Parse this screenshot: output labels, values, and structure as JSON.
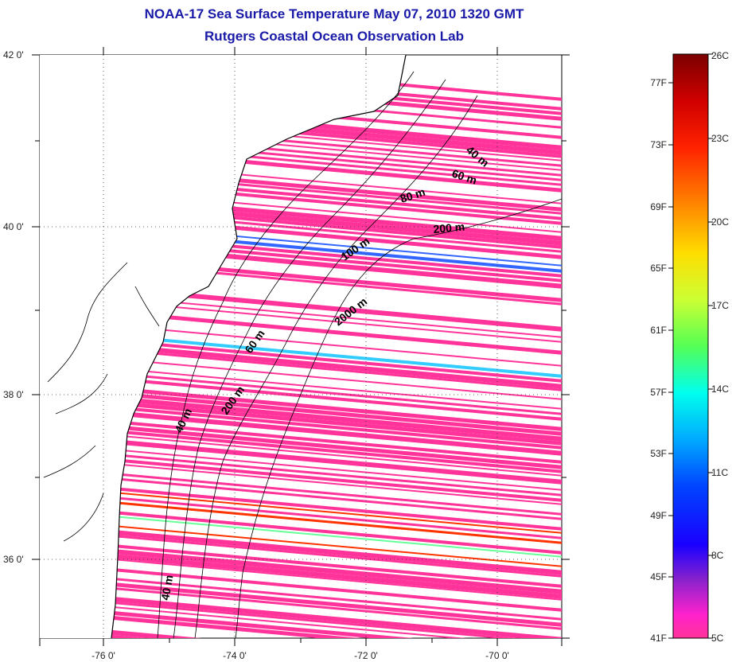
{
  "title": "NOAA-17 Sea Surface Temperature May 07, 2010 1320 GMT",
  "subtitle": "Rutgers Coastal Ocean Observation Lab",
  "map": {
    "lon_ticks": [
      "-76 0'",
      "-74 0'",
      "-72 0'",
      "-70 0'"
    ],
    "lat_ticks": [
      "42 0'",
      "40 0'",
      "38 0'",
      "36 0'"
    ],
    "contour_labels": [
      "40 m",
      "60 m",
      "80 m",
      "200 m",
      "100 m",
      "2000 m",
      "60 m",
      "200 m",
      "40 m",
      "40 m"
    ]
  },
  "colorbar": {
    "fahrenheit_labels": [
      "77F",
      "73F",
      "69F",
      "65F",
      "61F",
      "57F",
      "53F",
      "49F",
      "45F",
      "41F"
    ],
    "celsius_labels": [
      "26C",
      "23C",
      "20C",
      "17C",
      "14C",
      "11C",
      "8C",
      "5C"
    ],
    "colors": [
      "#7a0000",
      "#ff0000",
      "#ff9900",
      "#ffff00",
      "#66ff33",
      "#00ffff",
      "#0066ff",
      "#0000ff",
      "#9933cc",
      "#ff33cc",
      "#ff3399"
    ]
  },
  "sst_colors": {
    "dominant": "#ff3399",
    "cool": "#33ccff",
    "mid": "#66ff99",
    "warm": "#ff3300",
    "blue": "#3366ff"
  }
}
